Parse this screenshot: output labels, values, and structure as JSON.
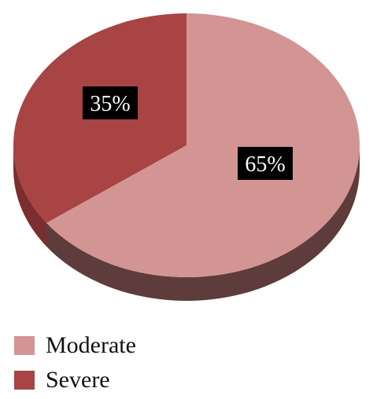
{
  "chart_data": {
    "type": "pie",
    "slices": [
      {
        "name": "Moderate",
        "value": 65,
        "label": "65%",
        "color": "#d39494",
        "side_color": "#5e3c3c"
      },
      {
        "name": "Severe",
        "value": 35,
        "label": "35%",
        "color": "#a84444",
        "side_color": "#7a2e2e"
      }
    ],
    "legend_position": "bottom-left",
    "style": "3d-tilted-pie"
  },
  "legend": [
    {
      "label": "Moderate",
      "color": "#d39494"
    },
    {
      "label": "Severe",
      "color": "#a84444"
    }
  ]
}
